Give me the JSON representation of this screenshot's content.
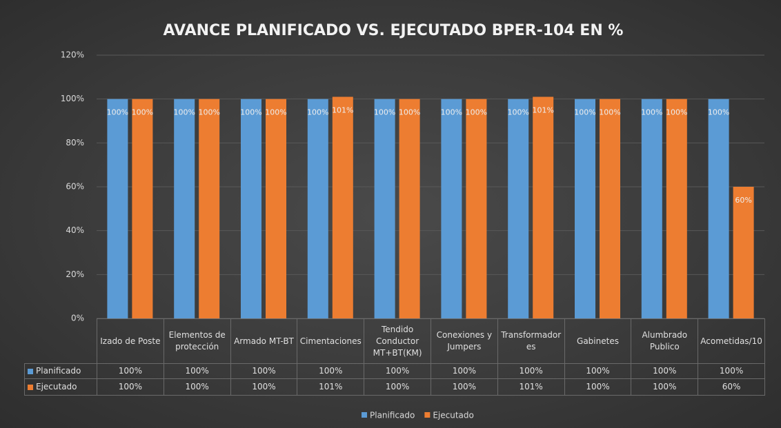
{
  "chart_data": {
    "type": "bar",
    "title": "AVANCE PLANIFICADO VS. EJECUTADO BPER-104 EN %",
    "categories": [
      "Izado de Poste",
      "Elementos de protección",
      "Armado MT-BT",
      "Cimentaciones",
      "Tendido Conductor MT+BT(KM)",
      "Conexiones y Jumpers",
      "Transformadores",
      "Gabinetes",
      "Alumbrado Publico",
      "Acometidas/10"
    ],
    "series": [
      {
        "name": "Planificado",
        "color": "#5b9bd5",
        "values": [
          100,
          100,
          100,
          100,
          100,
          100,
          100,
          100,
          100,
          100
        ],
        "value_labels": [
          "100%",
          "100%",
          "100%",
          "100%",
          "100%",
          "100%",
          "100%",
          "100%",
          "100%",
          "100%"
        ]
      },
      {
        "name": "Ejecutado",
        "color": "#ed7d31",
        "values": [
          100,
          100,
          100,
          101,
          100,
          100,
          101,
          100,
          100,
          60
        ],
        "value_labels": [
          "100%",
          "100%",
          "100%",
          "101%",
          "100%",
          "100%",
          "101%",
          "100%",
          "100%",
          "60%"
        ]
      }
    ],
    "ylim": [
      0,
      120
    ],
    "yticks": [
      {
        "value": 0,
        "label": "0%"
      },
      {
        "value": 20,
        "label": "20%"
      },
      {
        "value": 40,
        "label": "40%"
      },
      {
        "value": 60,
        "label": "60%"
      },
      {
        "value": 80,
        "label": "80%"
      },
      {
        "value": 100,
        "label": "100%"
      },
      {
        "value": 120,
        "label": "120%"
      }
    ],
    "grid": true,
    "legend": "bottom"
  }
}
